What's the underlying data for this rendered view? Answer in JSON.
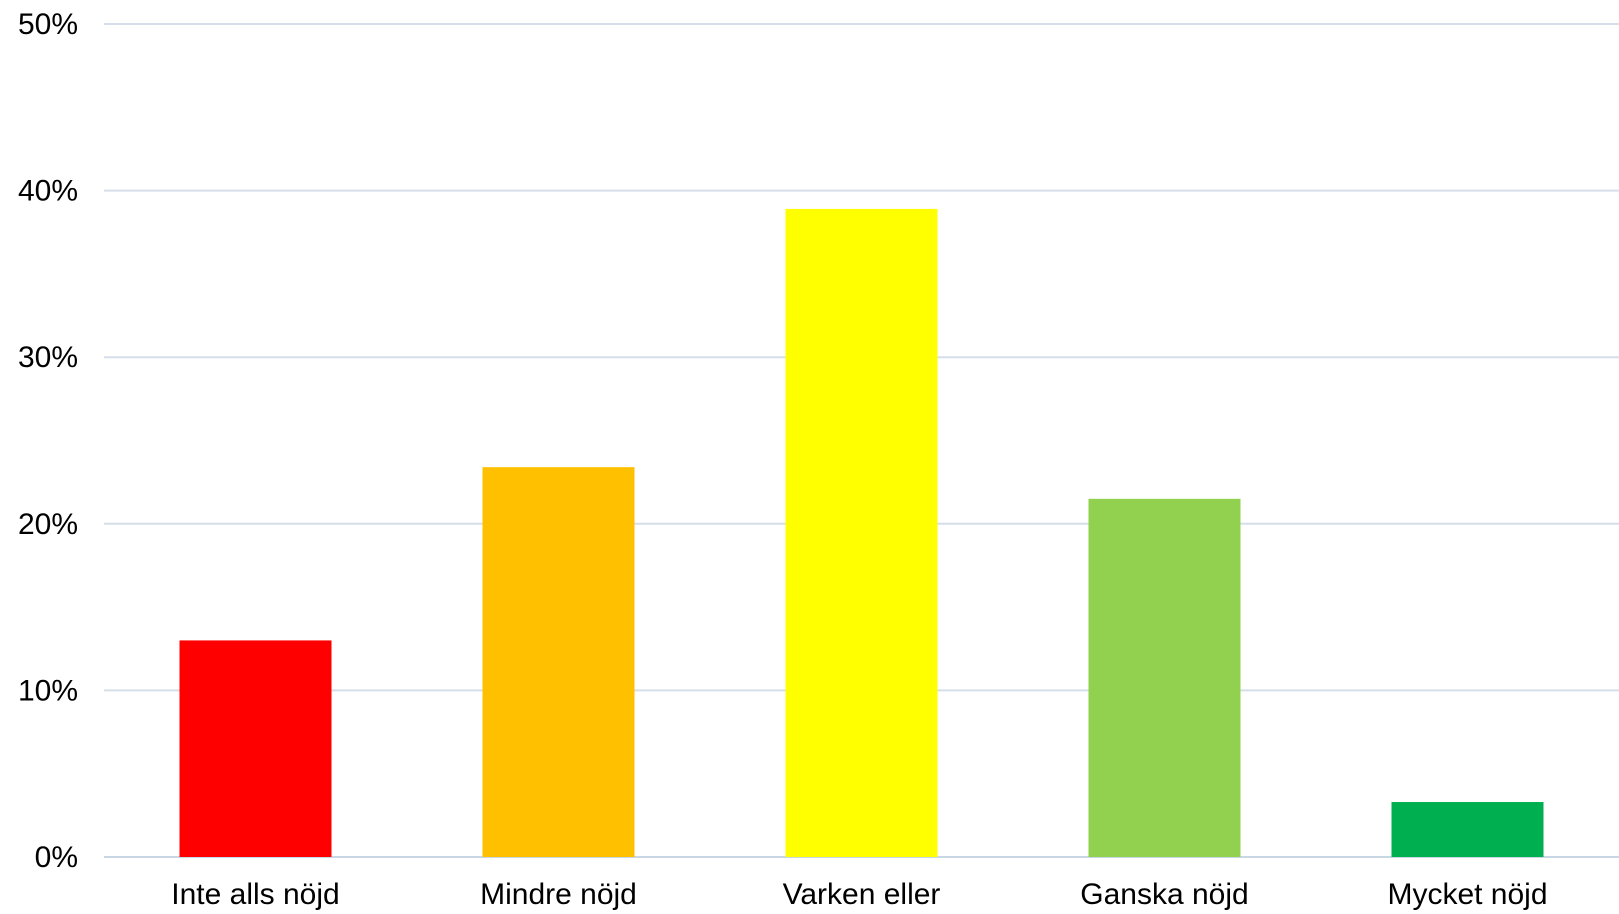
{
  "chart_data": {
    "type": "bar",
    "categories": [
      "Inte alls nöjd",
      "Mindre nöjd",
      "Varken eller",
      "Ganska nöjd",
      "Mycket nöjd"
    ],
    "values": [
      13,
      23.4,
      38.9,
      21.5,
      3.3
    ],
    "colors": [
      "#ff0000",
      "#ffc000",
      "#ffff00",
      "#92d050",
      "#00b050"
    ],
    "ylim": [
      0,
      50
    ],
    "yticks": [
      0,
      10,
      20,
      30,
      40,
      50
    ],
    "ytick_labels": [
      "0%",
      "10%",
      "20%",
      "30%",
      "40%",
      "50%"
    ],
    "grid": true,
    "legend": "none",
    "title": "",
    "xlabel": "",
    "ylabel": ""
  }
}
